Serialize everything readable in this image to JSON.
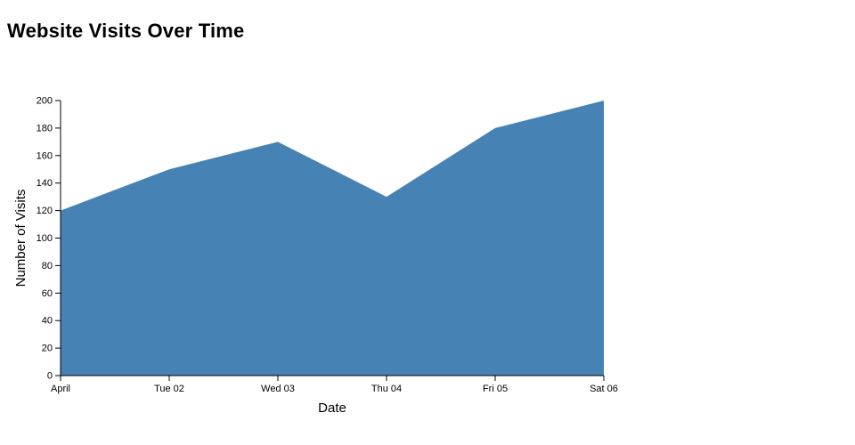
{
  "page": {
    "background": "#ffffff"
  },
  "chart_data": {
    "type": "area",
    "title": "Website Visits Over Time",
    "xlabel": "Date",
    "ylabel": "Number of Visits",
    "categories": [
      "April",
      "Tue 02",
      "Wed 03",
      "Thu 04",
      "Fri 05",
      "Sat 06"
    ],
    "values": [
      120,
      150,
      170,
      130,
      180,
      200
    ],
    "ylim": [
      0,
      200
    ],
    "ytick_step": 20,
    "yticks": [
      0,
      20,
      40,
      60,
      80,
      100,
      120,
      140,
      160,
      180,
      200
    ],
    "area_color": "#4682B4",
    "axis_color": "#000000",
    "grid": false,
    "legend": false
  }
}
